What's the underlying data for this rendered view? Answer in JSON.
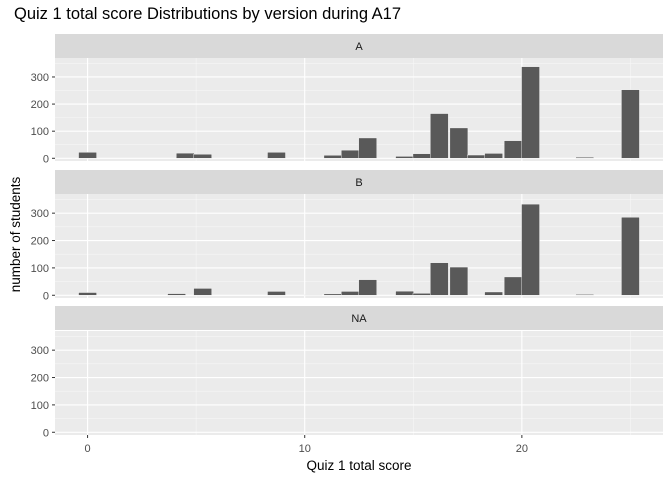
{
  "chart_data": {
    "type": "bar",
    "title": "Quiz 1 total score Distributions by version during A17",
    "xlabel": "Quiz 1 total score",
    "ylabel": "number of students",
    "xlim": [
      -1.5,
      26.5
    ],
    "ylim": [
      -10,
      370
    ],
    "x_ticks": [
      0,
      10,
      20
    ],
    "y_ticks": [
      0,
      100,
      200,
      300
    ],
    "bin_width": 0.83,
    "bar_color": "#595959",
    "panel_background": "#ebebeb",
    "strip_background": "#d9d9d9",
    "grid": true,
    "facets": [
      {
        "label": "A",
        "x": [
          0,
          4.5,
          5.3,
          8.7,
          11.3,
          12.1,
          12.9,
          14.6,
          15.4,
          16.2,
          17.1,
          17.9,
          18.7,
          19.6,
          20.4,
          22.9,
          25
        ],
        "values": [
          22,
          19,
          15,
          22,
          11,
          30,
          75,
          7,
          17,
          165,
          112,
          12,
          18,
          65,
          338,
          4,
          253
        ]
      },
      {
        "label": "B",
        "x": [
          0,
          4.1,
          5.3,
          8.7,
          10.4,
          11.3,
          12.1,
          12.9,
          14.6,
          15.4,
          16.2,
          17.1,
          18.7,
          19.6,
          20.4,
          22.9,
          25
        ],
        "values": [
          10,
          6,
          25,
          14,
          2,
          5,
          14,
          57,
          15,
          7,
          119,
          103,
          12,
          67,
          333,
          3,
          285
        ]
      },
      {
        "label": "NA",
        "x": [],
        "values": []
      }
    ]
  }
}
